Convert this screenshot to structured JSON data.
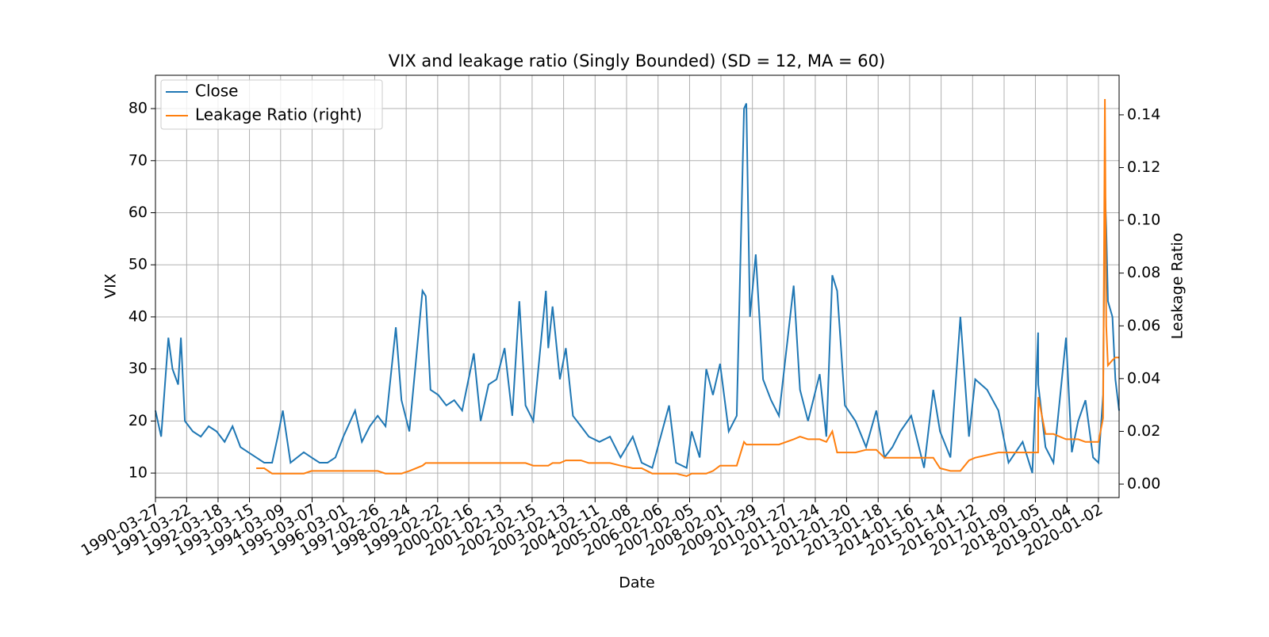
{
  "chart_data": {
    "type": "line",
    "title": "VIX and leakage ratio (Singly Bounded) (SD = 12, MA = 60)",
    "x_label": "Date",
    "y_label": "VIX",
    "y2_label": "Leakage Ratio",
    "x": [
      "1990-03-27",
      "1990-06-01",
      "1990-08-23",
      "1990-10-10",
      "1990-12-14",
      "1991-01-15",
      "1991-03-01",
      "1991-06-01",
      "1991-09-01",
      "1991-12-01",
      "1992-03-01",
      "1992-06-01",
      "1992-09-01",
      "1992-12-01",
      "1993-03-01",
      "1993-06-01",
      "1993-09-01",
      "1993-12-01",
      "1994-02-04",
      "1994-04-04",
      "1994-07-01",
      "1994-12-01",
      "1995-03-01",
      "1995-06-01",
      "1995-09-01",
      "1995-12-01",
      "1996-03-01",
      "1996-07-15",
      "1996-10-01",
      "1997-01-01",
      "1997-04-01",
      "1997-07-01",
      "1997-10-28",
      "1998-01-01",
      "1998-04-01",
      "1998-08-31",
      "1998-10-08",
      "1998-12-01",
      "1999-03-01",
      "1999-06-01",
      "1999-09-01",
      "1999-12-01",
      "2000-04-14",
      "2000-07-01",
      "2000-10-01",
      "2001-01-01",
      "2001-04-04",
      "2001-07-01",
      "2001-09-21",
      "2001-12-01",
      "2002-03-01",
      "2002-07-24",
      "2002-08-20",
      "2002-10-09",
      "2003-01-01",
      "2003-03-11",
      "2003-06-01",
      "2003-09-01",
      "2003-12-01",
      "2004-04-01",
      "2004-08-01",
      "2004-12-01",
      "2005-04-20",
      "2005-08-01",
      "2005-12-01",
      "2006-06-13",
      "2006-09-01",
      "2007-01-01",
      "2007-03-01",
      "2007-06-01",
      "2007-08-16",
      "2007-11-01",
      "2008-01-22",
      "2008-05-01",
      "2008-08-01",
      "2008-10-24",
      "2008-11-20",
      "2009-01-01",
      "2009-03-09",
      "2009-06-01",
      "2009-09-01",
      "2009-12-01",
      "2010-05-20",
      "2010-08-01",
      "2010-11-01",
      "2011-03-16",
      "2011-06-01",
      "2011-08-08",
      "2011-10-03",
      "2012-01-01",
      "2012-05-01",
      "2012-09-01",
      "2012-12-28",
      "2013-04-01",
      "2013-07-01",
      "2013-10-01",
      "2014-02-03",
      "2014-07-01",
      "2014-10-15",
      "2015-01-01",
      "2015-05-01",
      "2015-08-24",
      "2015-12-01",
      "2016-02-11",
      "2016-06-27",
      "2016-11-04",
      "2017-03-01",
      "2017-08-11",
      "2017-12-01",
      "2018-02-05",
      "2018-02-07",
      "2018-05-01",
      "2018-08-01",
      "2018-12-24",
      "2019-03-01",
      "2019-05-13",
      "2019-08-05",
      "2019-11-01",
      "2020-01-02",
      "2020-02-24",
      "2020-03-16",
      "2020-04-01",
      "2020-04-20",
      "2020-06-11",
      "2020-07-15",
      "2020-08-27"
    ],
    "series": [
      {
        "name": "Close",
        "color": "#1f77b4",
        "values": [
          22,
          17,
          36,
          30,
          27,
          36,
          20,
          18,
          17,
          19,
          18,
          16,
          19,
          15,
          14,
          13,
          12,
          12,
          17,
          22,
          12,
          14,
          13,
          12,
          12,
          13,
          17,
          22,
          16,
          19,
          21,
          19,
          38,
          24,
          18,
          45,
          44,
          26,
          25,
          23,
          24,
          22,
          33,
          20,
          27,
          28,
          34,
          21,
          43,
          23,
          20,
          45,
          34,
          42,
          28,
          34,
          21,
          19,
          17,
          16,
          17,
          13,
          17,
          12,
          11,
          23,
          12,
          11,
          18,
          13,
          30,
          25,
          31,
          18,
          21,
          80,
          81,
          40,
          52,
          28,
          24,
          21,
          46,
          26,
          20,
          29,
          17,
          48,
          45,
          23,
          20,
          15,
          22,
          13,
          15,
          18,
          21,
          11,
          26,
          18,
          13,
          40,
          17,
          28,
          26,
          22,
          12,
          16,
          10,
          37,
          27,
          15,
          12,
          36,
          14,
          20,
          24,
          13,
          12,
          25,
          65,
          57,
          43,
          40,
          28,
          22
        ]
      },
      {
        "name": "Leakage Ratio (right)",
        "color": "#ff7f0e",
        "axis": "y2",
        "values": [
          null,
          null,
          null,
          null,
          null,
          null,
          null,
          null,
          null,
          null,
          null,
          null,
          null,
          null,
          null,
          0.006,
          0.006,
          0.004,
          0.004,
          0.004,
          0.004,
          0.004,
          0.005,
          0.005,
          0.005,
          0.005,
          0.005,
          0.005,
          0.005,
          0.005,
          0.005,
          0.004,
          0.004,
          0.004,
          0.005,
          0.007,
          0.008,
          0.008,
          0.008,
          0.008,
          0.008,
          0.008,
          0.008,
          0.008,
          0.008,
          0.008,
          0.008,
          0.008,
          0.008,
          0.008,
          0.007,
          0.007,
          0.007,
          0.008,
          0.008,
          0.009,
          0.009,
          0.009,
          0.008,
          0.008,
          0.008,
          0.007,
          0.006,
          0.006,
          0.004,
          0.004,
          0.004,
          0.003,
          0.004,
          0.004,
          0.004,
          0.005,
          0.007,
          0.007,
          0.007,
          0.016,
          0.015,
          0.015,
          0.015,
          0.015,
          0.015,
          0.015,
          0.017,
          0.018,
          0.017,
          0.017,
          0.016,
          0.02,
          0.012,
          0.012,
          0.012,
          0.013,
          0.013,
          0.01,
          0.01,
          0.01,
          0.01,
          0.01,
          0.01,
          0.006,
          0.005,
          0.005,
          0.009,
          0.01,
          0.011,
          0.012,
          0.012,
          0.012,
          0.012,
          0.012,
          0.033,
          0.019,
          0.019,
          0.017,
          0.017,
          0.017,
          0.016,
          0.016,
          0.016,
          0.025,
          0.146,
          0.06,
          0.045,
          0.047,
          0.048,
          0.048
        ]
      }
    ],
    "xlim": [
      "1990-03-27",
      "2020-08-27"
    ],
    "xticks": [
      "1990-03-27",
      "1991-03-22",
      "1992-03-18",
      "1993-03-15",
      "1994-03-09",
      "1995-03-07",
      "1996-03-01",
      "1997-02-26",
      "1998-02-24",
      "1999-02-22",
      "2000-02-16",
      "2001-02-13",
      "2002-02-15",
      "2003-02-13",
      "2004-02-11",
      "2005-02-08",
      "2006-02-06",
      "2007-02-05",
      "2008-02-01",
      "2009-01-29",
      "2010-01-27",
      "2011-01-24",
      "2012-01-20",
      "2013-01-18",
      "2014-01-16",
      "2015-01-14",
      "2016-01-12",
      "2017-01-09",
      "2018-01-05",
      "2019-01-04",
      "2020-01-02"
    ],
    "ylim": [
      5.3,
      86.4
    ],
    "yticks": [
      10,
      20,
      30,
      40,
      50,
      60,
      70,
      80
    ],
    "y2lim": [
      -0.0051,
      0.155
    ],
    "y2ticks": [
      {
        "value": 0,
        "label": "0.00"
      },
      0.02,
      0.04,
      0.06,
      0.08,
      {
        "value": 0.1,
        "label": "0.10"
      },
      0.12,
      0.14
    ],
    "grid": true,
    "legend": "upper left"
  }
}
